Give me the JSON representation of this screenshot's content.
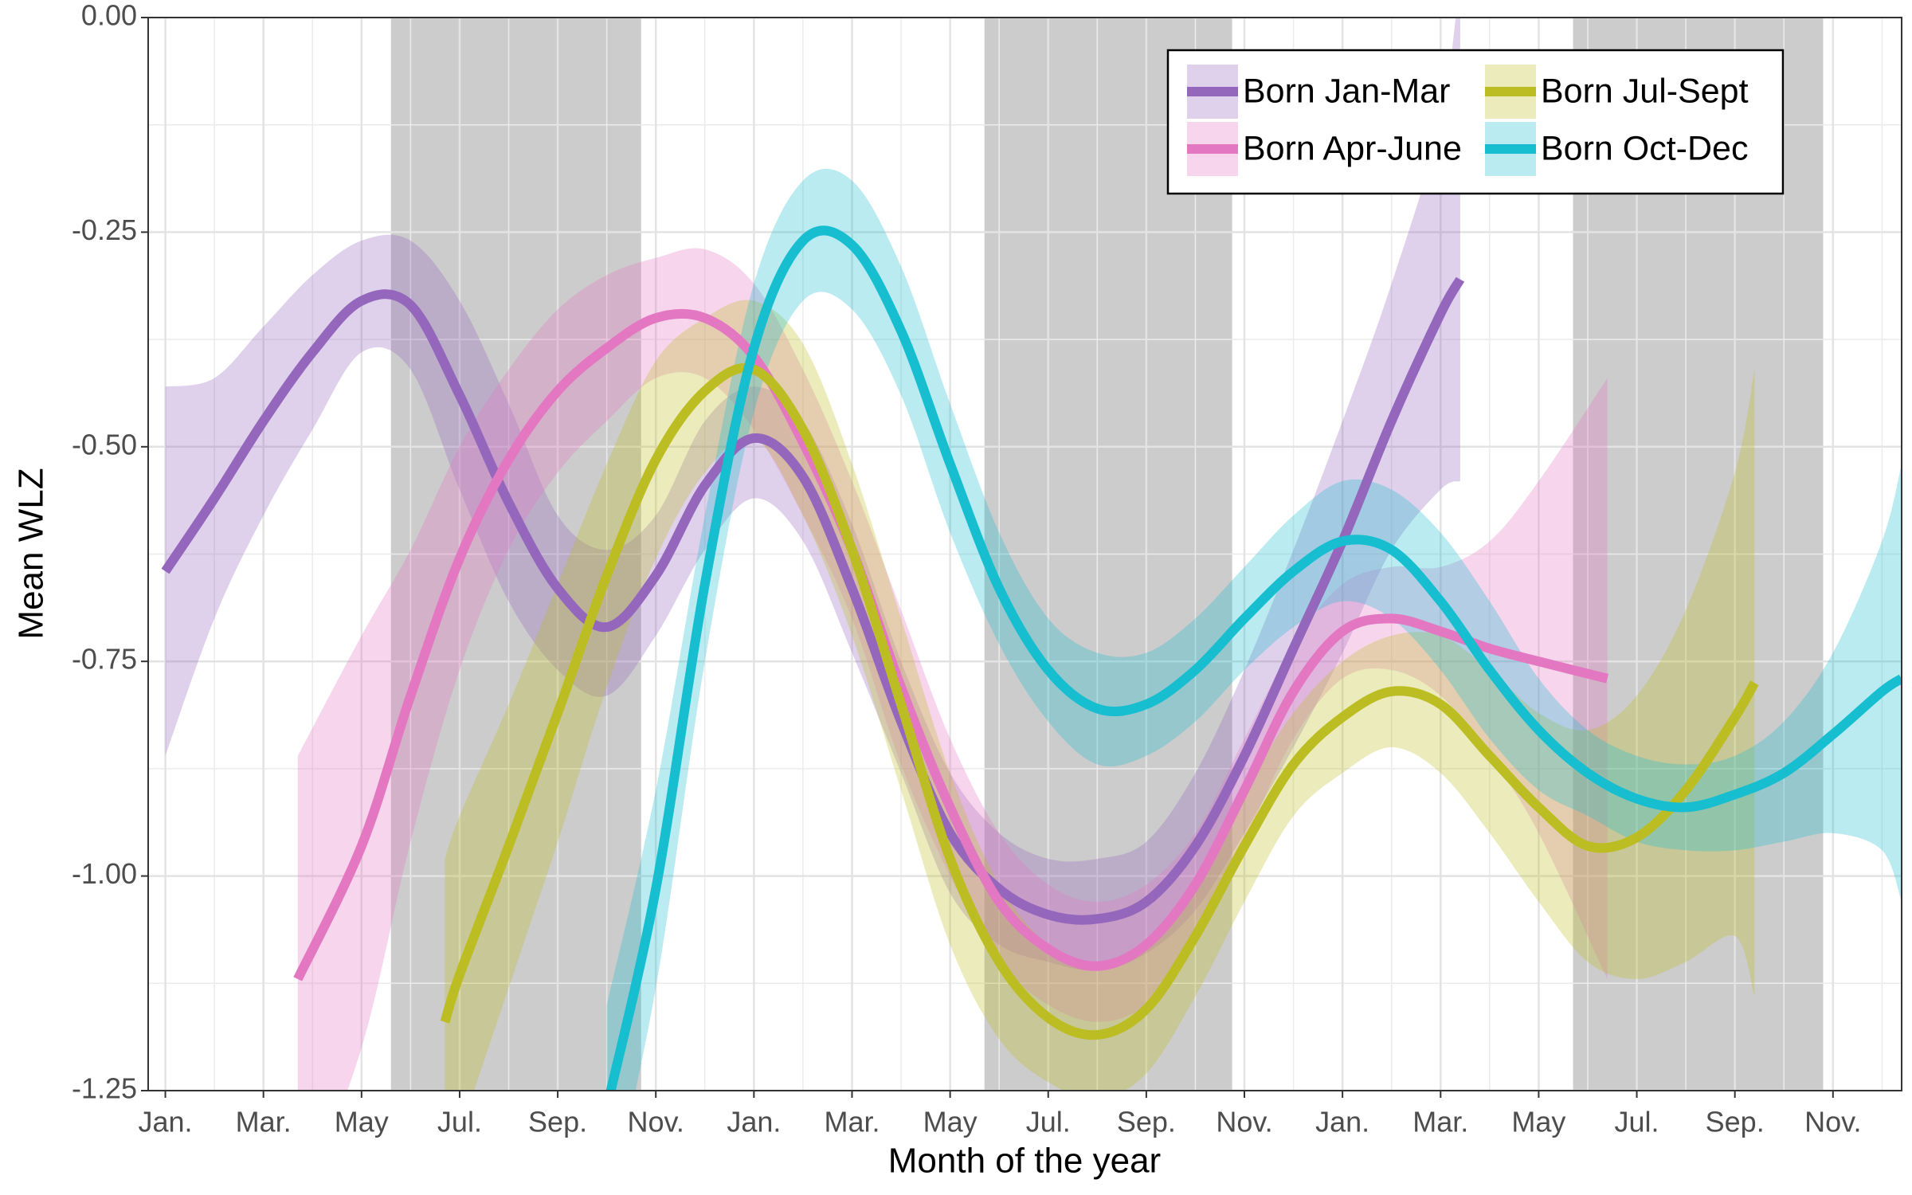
{
  "chart_data": {
    "type": "line",
    "x_label": "Month of the year",
    "y_label": "Mean WLZ",
    "xlim": [
      -0.35,
      35.4
    ],
    "ylim": [
      -1.25,
      0
    ],
    "xticks": [
      {
        "value": 0,
        "label": "Jan."
      },
      {
        "value": 2,
        "label": "Mar."
      },
      {
        "value": 4,
        "label": "May"
      },
      {
        "value": 6,
        "label": "Jul."
      },
      {
        "value": 8,
        "label": "Sep."
      },
      {
        "value": 10,
        "label": "Nov."
      },
      {
        "value": 12,
        "label": "Jan."
      },
      {
        "value": 14,
        "label": "Mar."
      },
      {
        "value": 16,
        "label": "May"
      },
      {
        "value": 18,
        "label": "Jul."
      },
      {
        "value": 20,
        "label": "Sep."
      },
      {
        "value": 22,
        "label": "Nov."
      },
      {
        "value": 24,
        "label": "Jan."
      },
      {
        "value": 26,
        "label": "Mar."
      },
      {
        "value": 28,
        "label": "May"
      },
      {
        "value": 30,
        "label": "Jul."
      },
      {
        "value": 32,
        "label": "Sep."
      },
      {
        "value": 34,
        "label": "Nov."
      }
    ],
    "yticks": [
      {
        "value": 0,
        "label": "0.00"
      },
      {
        "value": -0.25,
        "label": "-0.25"
      },
      {
        "value": -0.5,
        "label": "-0.50"
      },
      {
        "value": -0.75,
        "label": "-0.75"
      },
      {
        "value": -1,
        "label": "-1.00"
      },
      {
        "value": -1.25,
        "label": "-1.25"
      }
    ],
    "grid": true,
    "minor_grid": true,
    "shaded_regions": [
      [
        4.6,
        9.7
      ],
      [
        16.7,
        21.75
      ],
      [
        28.7,
        33.8
      ]
    ],
    "shade_color": "#cccccc",
    "legend": "top-right",
    "legend_columns": 2,
    "series": [
      {
        "name": "Born Jan-Mar",
        "color": "#9467bd",
        "x": [
          0,
          1,
          2,
          3,
          4,
          5,
          6,
          7,
          8,
          9,
          10,
          11,
          12,
          13,
          14,
          15,
          16,
          17,
          18,
          19,
          20,
          21,
          22,
          23,
          24,
          25,
          26,
          26.4
        ],
        "values": [
          -0.645,
          -0.56,
          -0.47,
          -0.39,
          -0.33,
          -0.335,
          -0.44,
          -0.565,
          -0.665,
          -0.71,
          -0.65,
          -0.545,
          -0.49,
          -0.535,
          -0.665,
          -0.82,
          -0.95,
          -1.015,
          -1.045,
          -1.05,
          -1.03,
          -0.965,
          -0.86,
          -0.735,
          -0.61,
          -0.47,
          -0.345,
          -0.305
        ],
        "upper": [
          -0.43,
          -0.42,
          -0.36,
          -0.3,
          -0.26,
          -0.26,
          -0.33,
          -0.45,
          -0.58,
          -0.62,
          -0.58,
          -0.47,
          -0.43,
          -0.47,
          -0.59,
          -0.75,
          -0.88,
          -0.95,
          -0.98,
          -0.98,
          -0.96,
          -0.88,
          -0.76,
          -0.62,
          -0.47,
          -0.31,
          -0.12,
          0.05
        ],
        "lower": [
          -0.86,
          -0.7,
          -0.58,
          -0.48,
          -0.39,
          -0.41,
          -0.55,
          -0.68,
          -0.76,
          -0.79,
          -0.72,
          -0.62,
          -0.56,
          -0.61,
          -0.74,
          -0.88,
          -1.02,
          -1.08,
          -1.1,
          -1.11,
          -1.09,
          -1.04,
          -0.95,
          -0.85,
          -0.74,
          -0.62,
          -0.55,
          -0.54
        ]
      },
      {
        "name": "Born Apr-June",
        "color": "#e377c2",
        "x": [
          2.7,
          4,
          5,
          6,
          7,
          8,
          9,
          10,
          11,
          12,
          13,
          14,
          15,
          16,
          17,
          18,
          19,
          20,
          21,
          22,
          23,
          24,
          25,
          26,
          27,
          28,
          29.4
        ],
        "values": [
          -1.12,
          -0.965,
          -0.79,
          -0.63,
          -0.515,
          -0.435,
          -0.385,
          -0.35,
          -0.35,
          -0.395,
          -0.495,
          -0.62,
          -0.78,
          -0.92,
          -1.03,
          -1.085,
          -1.105,
          -1.08,
          -1.01,
          -0.9,
          -0.785,
          -0.715,
          -0.7,
          -0.715,
          -0.735,
          -0.75,
          -0.77
        ],
        "upper": [
          -0.86,
          -0.72,
          -0.62,
          -0.5,
          -0.41,
          -0.34,
          -0.3,
          -0.28,
          -0.27,
          -0.31,
          -0.41,
          -0.54,
          -0.69,
          -0.84,
          -0.95,
          -1.01,
          -1.03,
          -1.01,
          -0.95,
          -0.84,
          -0.73,
          -0.66,
          -0.64,
          -0.64,
          -0.61,
          -0.54,
          -0.42
        ],
        "lower": [
          -1.4,
          -1.2,
          -0.96,
          -0.76,
          -0.62,
          -0.53,
          -0.47,
          -0.42,
          -0.42,
          -0.48,
          -0.58,
          -0.7,
          -0.87,
          -1.0,
          -1.1,
          -1.15,
          -1.17,
          -1.15,
          -1.08,
          -0.96,
          -0.84,
          -0.77,
          -0.76,
          -0.79,
          -0.86,
          -0.95,
          -1.12
        ]
      },
      {
        "name": "Born Jul-Sept",
        "color": "#bcbd22",
        "x": [
          5.7,
          6,
          7,
          8,
          9,
          10,
          11,
          12,
          13,
          14,
          15,
          16,
          17,
          18,
          19,
          20,
          21,
          22,
          23,
          24,
          25,
          26,
          27,
          28,
          29,
          30,
          31,
          32,
          32.4
        ],
        "values": [
          -1.17,
          -1.115,
          -0.965,
          -0.81,
          -0.65,
          -0.515,
          -0.435,
          -0.41,
          -0.48,
          -0.62,
          -0.8,
          -0.98,
          -1.1,
          -1.165,
          -1.185,
          -1.155,
          -1.07,
          -0.965,
          -0.87,
          -0.815,
          -0.785,
          -0.8,
          -0.86,
          -0.92,
          -0.965,
          -0.955,
          -0.9,
          -0.815,
          -0.775
        ],
        "upper": [
          -0.98,
          -0.93,
          -0.8,
          -0.66,
          -0.52,
          -0.4,
          -0.35,
          -0.33,
          -0.38,
          -0.52,
          -0.7,
          -0.88,
          -1.01,
          -1.08,
          -1.1,
          -1.08,
          -1.0,
          -0.9,
          -0.81,
          -0.75,
          -0.72,
          -0.72,
          -0.76,
          -0.81,
          -0.83,
          -0.79,
          -0.69,
          -0.53,
          -0.41
        ],
        "lower": [
          -1.35,
          -1.3,
          -1.13,
          -0.96,
          -0.78,
          -0.63,
          -0.53,
          -0.49,
          -0.58,
          -0.72,
          -0.9,
          -1.08,
          -1.19,
          -1.24,
          -1.26,
          -1.23,
          -1.14,
          -1.03,
          -0.93,
          -0.88,
          -0.85,
          -0.88,
          -0.95,
          -1.03,
          -1.1,
          -1.12,
          -1.1,
          -1.07,
          -1.14
        ]
      },
      {
        "name": "Born Oct-Dec",
        "color": "#17becf",
        "x": [
          9,
          10,
          11,
          12,
          13,
          14,
          15,
          16,
          17,
          18,
          19,
          20,
          21,
          22,
          23,
          24,
          25,
          26,
          27,
          28,
          29,
          30,
          31,
          32,
          33,
          34,
          35,
          35.4
        ],
        "values": [
          -1.27,
          -1.015,
          -0.66,
          -0.385,
          -0.26,
          -0.265,
          -0.365,
          -0.52,
          -0.665,
          -0.76,
          -0.805,
          -0.8,
          -0.76,
          -0.7,
          -0.645,
          -0.61,
          -0.62,
          -0.68,
          -0.76,
          -0.83,
          -0.88,
          -0.91,
          -0.92,
          -0.905,
          -0.88,
          -0.835,
          -0.785,
          -0.77
        ],
        "upper": [
          -1.15,
          -0.9,
          -0.58,
          -0.31,
          -0.19,
          -0.19,
          -0.29,
          -0.45,
          -0.6,
          -0.7,
          -0.74,
          -0.74,
          -0.7,
          -0.64,
          -0.58,
          -0.54,
          -0.55,
          -0.6,
          -0.68,
          -0.77,
          -0.83,
          -0.86,
          -0.87,
          -0.86,
          -0.82,
          -0.74,
          -0.61,
          -0.52
        ],
        "lower": [
          -1.4,
          -1.13,
          -0.75,
          -0.46,
          -0.33,
          -0.34,
          -0.44,
          -0.6,
          -0.73,
          -0.82,
          -0.87,
          -0.86,
          -0.82,
          -0.76,
          -0.71,
          -0.68,
          -0.7,
          -0.76,
          -0.84,
          -0.9,
          -0.93,
          -0.96,
          -0.97,
          -0.97,
          -0.96,
          -0.95,
          -0.97,
          -1.03
        ]
      }
    ]
  }
}
